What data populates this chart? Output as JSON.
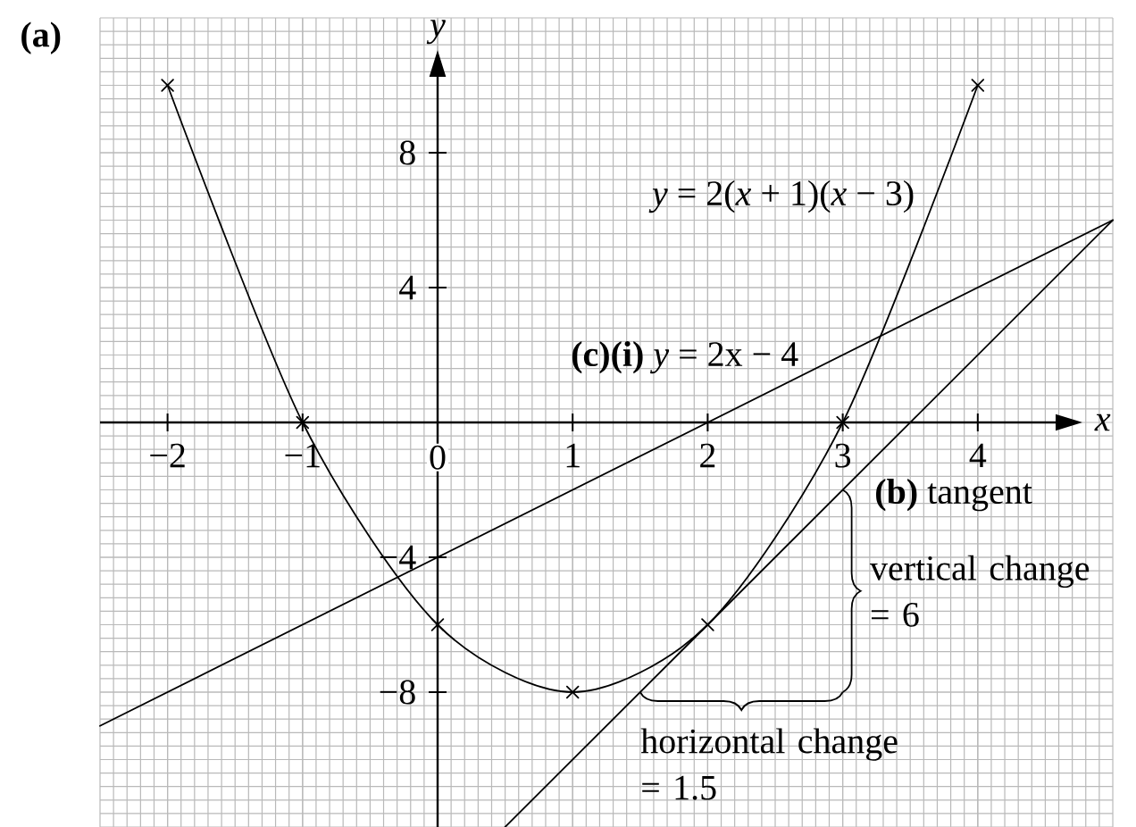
{
  "chart_data": {
    "type": "line",
    "title": "(a)",
    "xlabel": "x",
    "ylabel": "y",
    "xlim": [
      -2.5,
      5
    ],
    "ylim": [
      -12,
      12
    ],
    "xticks": [
      {
        "value": -2,
        "label": "−2"
      },
      {
        "value": -1,
        "label": "−1"
      },
      0,
      1,
      2,
      3,
      4
    ],
    "yticks": [
      {
        "value": -8,
        "label": "−8"
      },
      {
        "value": -4,
        "label": "−4"
      },
      4,
      8
    ],
    "grid": true,
    "series": [
      {
        "name": "*y* = 2(*x* + 1)(*x* − 3)",
        "color": "#000000",
        "x": [
          -2,
          -1,
          0,
          1,
          2,
          3,
          4
        ],
        "values": [
          10,
          0,
          -6,
          -8,
          -6,
          0,
          10
        ],
        "marker": "cross"
      },
      {
        "name": "**(c)(i)** *y* = 2x − 4",
        "color": "#000000",
        "x": [
          -2.5,
          5
        ],
        "values": [
          -9,
          6
        ]
      },
      {
        "name": "**(b)** tangent",
        "color": "#000000",
        "x": [
          0.5,
          5
        ],
        "values": [
          -12,
          6
        ]
      }
    ],
    "annotations": [
      {
        "text": "vertical change = 6",
        "x": 3,
        "y": -2
      },
      {
        "text": "horizontal change = 1.5",
        "x": 1.5,
        "y": -8
      }
    ]
  }
}
